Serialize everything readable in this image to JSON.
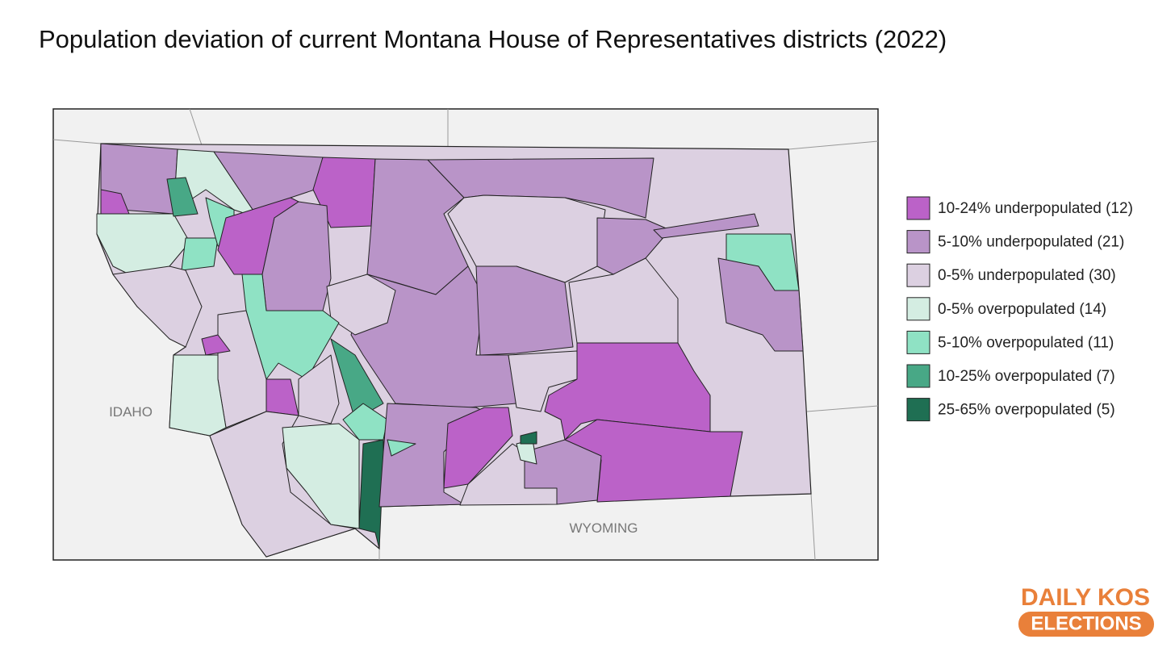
{
  "title": "Population deviation of current Montana House of Representatives districts (2022)",
  "map": {
    "labels": [
      "IDAHO",
      "WYOMING"
    ],
    "legend": {
      "items": [
        {
          "label": "10-24% underpopulated (12)",
          "color": "#bb62c8"
        },
        {
          "label": "5-10% underpopulated (21)",
          "color": "#b994c8"
        },
        {
          "label": "0-5% underpopulated (30)",
          "color": "#dcd0e1"
        },
        {
          "label": "0-5% overpopulated (14)",
          "color": "#d4ede2"
        },
        {
          "label": "5-10% overpopulated (11)",
          "color": "#8fe2c4"
        },
        {
          "label": "10-25% overpopulated (7)",
          "color": "#48a886"
        },
        {
          "label": "25-65% overpopulated (5)",
          "color": "#1f6f53"
        }
      ]
    }
  },
  "logo": {
    "line1": "DAILY KOS",
    "line2": "ELECTIONS"
  }
}
